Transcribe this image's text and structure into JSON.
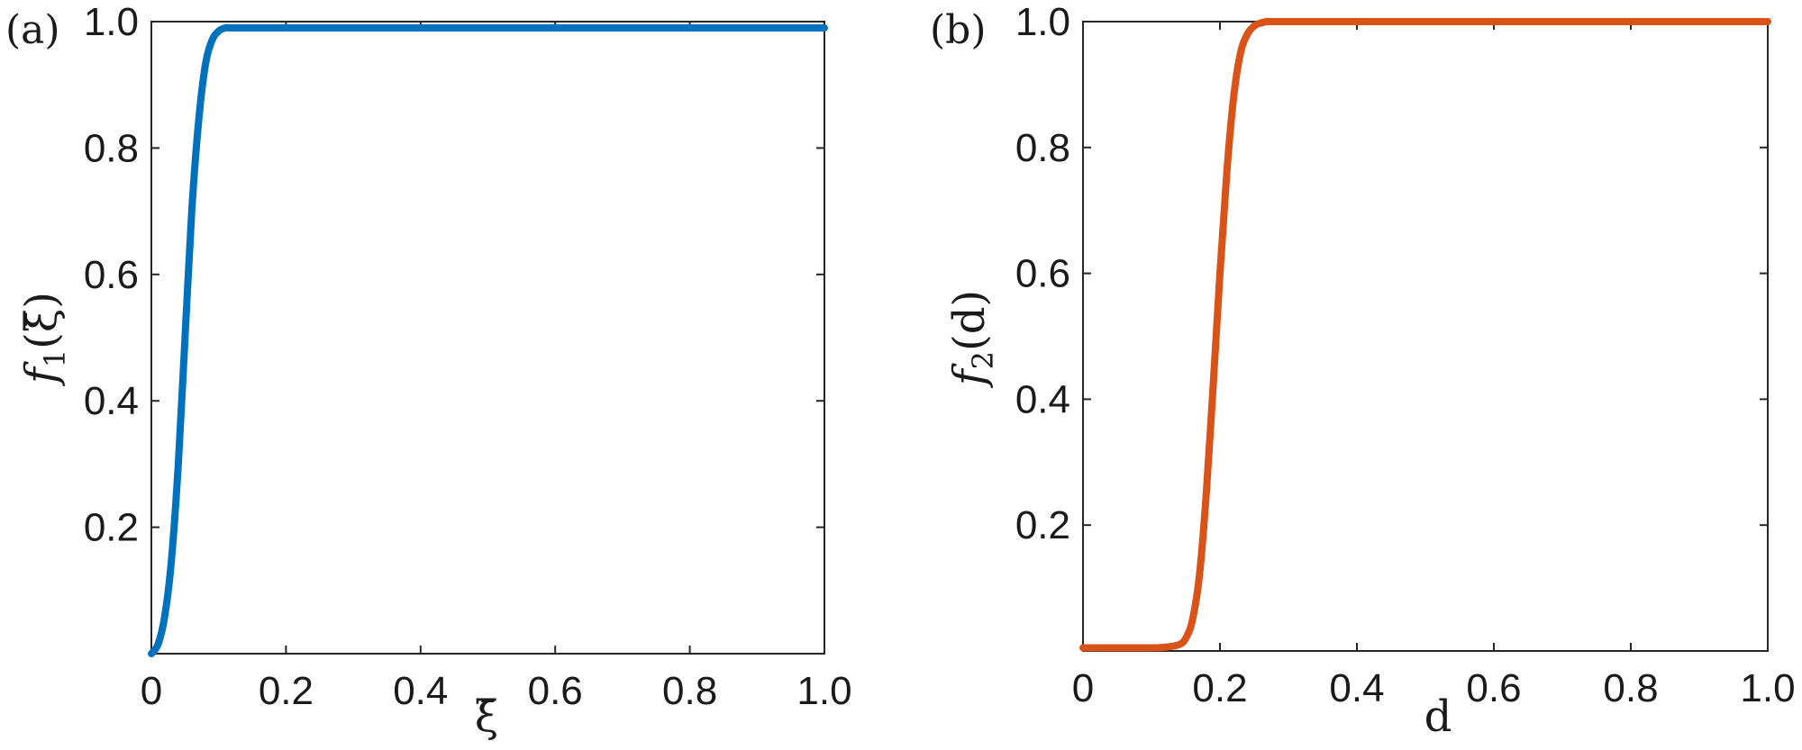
{
  "chart_data": [
    {
      "type": "line",
      "panel_label": "(a)",
      "xlabel": "ξ̄",
      "ylabel": "f1(ξ̄)",
      "ylabel_main": "f",
      "ylabel_sub": "1",
      "ylabel_arg": "(ξ̄)",
      "xlim": [
        0,
        1
      ],
      "ylim": [
        0,
        1
      ],
      "xticks": [
        "0",
        "0.2",
        "0.4",
        "0.6",
        "0.8",
        "1.0"
      ],
      "yticks": [
        "0.2",
        "0.4",
        "0.6",
        "0.8",
        "1.0"
      ],
      "color": "#0072bd",
      "series": [
        {
          "x": [
            0,
            0.01,
            0.02,
            0.03,
            0.04,
            0.05,
            0.06,
            0.07,
            0.08,
            0.09,
            0.1,
            0.11,
            0.12,
            0.15,
            0.2,
            0.4,
            0.6,
            0.8,
            1.0
          ],
          "y": [
            0,
            0.015,
            0.06,
            0.15,
            0.3,
            0.5,
            0.7,
            0.84,
            0.93,
            0.97,
            0.985,
            0.99,
            0.99,
            0.99,
            0.99,
            0.99,
            0.99,
            0.99,
            0.99
          ]
        }
      ]
    },
    {
      "type": "line",
      "panel_label": "(b)",
      "xlabel": "d",
      "ylabel": "f2(d)",
      "ylabel_main": "f",
      "ylabel_sub": "2",
      "ylabel_arg": "(d)",
      "xlim": [
        0,
        1
      ],
      "ylim": [
        0,
        1
      ],
      "xticks": [
        "0",
        "0.2",
        "0.4",
        "0.6",
        "0.8",
        "1.0"
      ],
      "yticks": [
        "0.2",
        "0.4",
        "0.6",
        "0.8",
        "1.0"
      ],
      "color": "#d95319",
      "series": [
        {
          "x": [
            0,
            0.05,
            0.1,
            0.12,
            0.14,
            0.15,
            0.16,
            0.17,
            0.18,
            0.19,
            0.2,
            0.21,
            0.22,
            0.23,
            0.24,
            0.25,
            0.26,
            0.27,
            0.28,
            0.4,
            0.6,
            0.8,
            1.0
          ],
          "y": [
            0.005,
            0.005,
            0.005,
            0.006,
            0.01,
            0.02,
            0.05,
            0.12,
            0.25,
            0.42,
            0.6,
            0.76,
            0.88,
            0.95,
            0.98,
            0.993,
            0.998,
            1.0,
            1.0,
            1.0,
            1.0,
            1.0,
            1.0
          ]
        }
      ]
    }
  ]
}
